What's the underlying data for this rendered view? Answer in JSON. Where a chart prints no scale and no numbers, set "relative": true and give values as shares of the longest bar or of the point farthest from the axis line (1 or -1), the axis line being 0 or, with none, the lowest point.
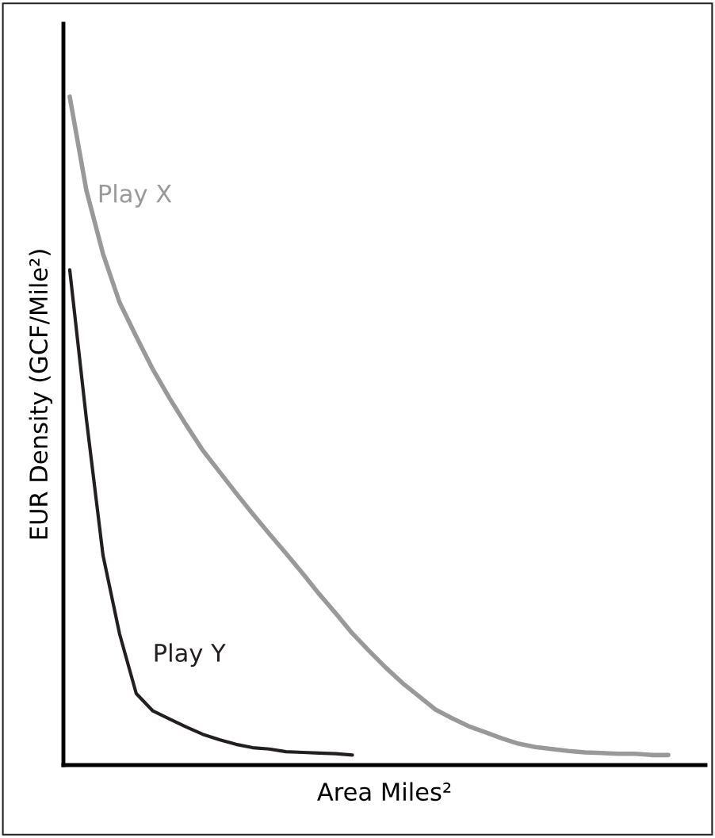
{
  "chart_data": {
    "type": "line",
    "relative": true,
    "xlabel": "Area Miles²",
    "ylabel": "EUR Density (GCF/Mile²)",
    "legend": false,
    "marker": "none",
    "line_style": "solid",
    "categories": [
      null,
      null,
      null,
      null,
      null,
      null,
      null,
      null,
      null,
      null,
      null,
      null,
      null,
      null,
      null,
      null,
      null,
      null,
      null,
      null,
      null,
      null,
      null,
      null,
      null,
      null,
      null,
      null,
      null,
      null,
      null,
      null,
      null,
      null,
      null,
      null,
      null
    ],
    "series": [
      {
        "name": "Play X",
        "color": "#999999",
        "values": [
          1.0,
          0.86,
          0.765,
          0.692,
          0.641,
          0.592,
          0.549,
          0.509,
          0.471,
          0.439,
          0.407,
          0.376,
          0.346,
          0.317,
          0.287,
          0.256,
          0.227,
          0.197,
          0.171,
          0.146,
          0.123,
          0.103,
          0.083,
          0.07,
          0.058,
          0.049,
          0.04,
          0.032,
          0.027,
          0.024,
          0.021,
          0.019,
          0.018,
          0.017,
          0.017,
          0.015,
          0.015
        ]
      },
      {
        "name": "Play Y",
        "color": "#231f20",
        "values": [
          0.741,
          0.518,
          0.314,
          0.196,
          0.107,
          0.081,
          0.069,
          0.057,
          0.046,
          0.038,
          0.031,
          0.026,
          0.024,
          0.02,
          0.019,
          0.018,
          0.017,
          0.015,
          null,
          null,
          null,
          null,
          null,
          null,
          null,
          null,
          null,
          null,
          null,
          null,
          null,
          null,
          null,
          null,
          null,
          null,
          null
        ]
      }
    ]
  }
}
